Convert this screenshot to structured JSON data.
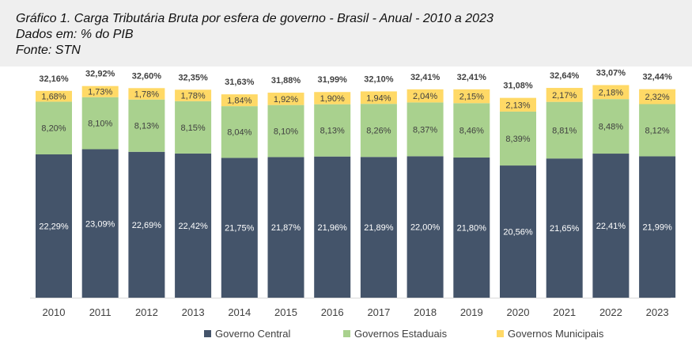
{
  "header": {
    "title": "Gráfico 1. Carga Tributária Bruta por esfera de governo - Brasil - Anual - 2010 a 2023",
    "subtitle": "Dados em: % do PIB",
    "source": "Fonte: STN"
  },
  "colors": {
    "central": "#44546a",
    "estaduais": "#a9d18e",
    "municipais": "#ffd966"
  },
  "chart_data": {
    "type": "bar",
    "stacked": true,
    "categories": [
      "2010",
      "2011",
      "2012",
      "2013",
      "2014",
      "2015",
      "2016",
      "2017",
      "2018",
      "2019",
      "2020",
      "2021",
      "2022",
      "2023"
    ],
    "series": [
      {
        "name": "Governo Central",
        "values": [
          22.29,
          23.09,
          22.69,
          22.42,
          21.75,
          21.87,
          21.96,
          21.89,
          22.0,
          21.8,
          20.56,
          21.65,
          22.41,
          21.99
        ],
        "labels": [
          "22,29%",
          "23,09%",
          "22,69%",
          "22,42%",
          "21,75%",
          "21,87%",
          "21,96%",
          "21,89%",
          "22,00%",
          "21,80%",
          "20,56%",
          "21,65%",
          "22,41%",
          "21,99%"
        ]
      },
      {
        "name": "Governos Estaduais",
        "values": [
          8.2,
          8.1,
          8.13,
          8.15,
          8.04,
          8.1,
          8.13,
          8.26,
          8.37,
          8.46,
          8.39,
          8.81,
          8.48,
          8.12
        ],
        "labels": [
          "8,20%",
          "8,10%",
          "8,13%",
          "8,15%",
          "8,04%",
          "8,10%",
          "8,13%",
          "8,26%",
          "8,37%",
          "8,46%",
          "8,39%",
          "8,81%",
          "8,48%",
          "8,12%"
        ]
      },
      {
        "name": "Governos Municipais",
        "values": [
          1.68,
          1.73,
          1.78,
          1.78,
          1.84,
          1.92,
          1.9,
          1.94,
          2.04,
          2.15,
          2.13,
          2.17,
          2.18,
          2.32
        ],
        "labels": [
          "1,68%",
          "1,73%",
          "1,78%",
          "1,78%",
          "1,84%",
          "1,92%",
          "1,90%",
          "1,94%",
          "2,04%",
          "2,15%",
          "2,13%",
          "2,17%",
          "2,18%",
          "2,32%"
        ]
      }
    ],
    "totals": [
      32.16,
      32.92,
      32.6,
      32.35,
      31.63,
      31.88,
      31.99,
      32.1,
      32.41,
      32.41,
      31.08,
      32.64,
      33.07,
      32.44
    ],
    "total_labels": [
      "32,16%",
      "32,92%",
      "32,60%",
      "32,35%",
      "31,63%",
      "31,88%",
      "31,99%",
      "32,10%",
      "32,41%",
      "32,41%",
      "31,08%",
      "32,64%",
      "33,07%",
      "32,44%"
    ],
    "legend_position": "bottom",
    "grid": false
  }
}
